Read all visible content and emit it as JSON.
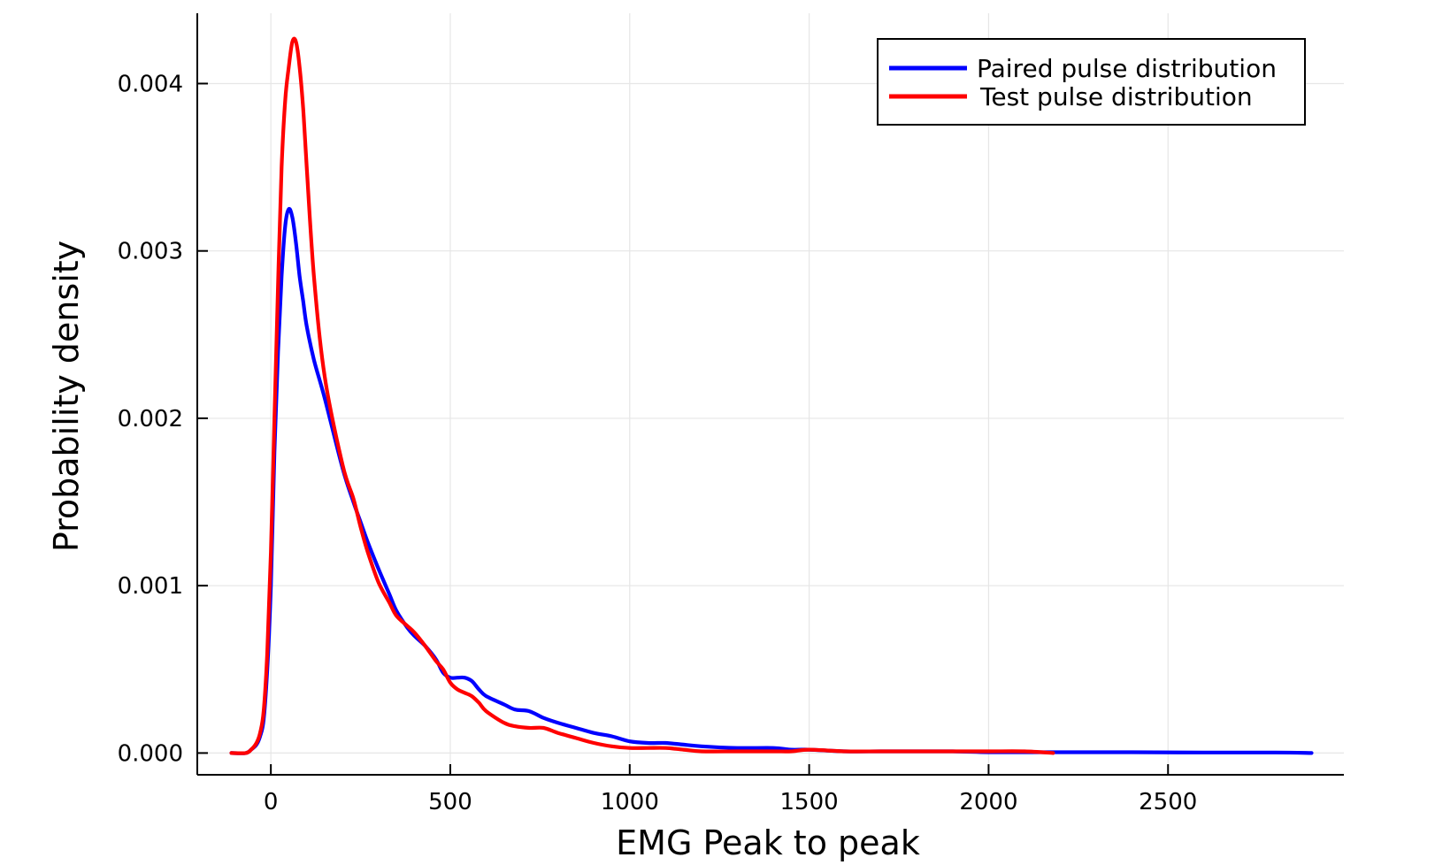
{
  "chart_data": {
    "type": "line",
    "title": "",
    "xlabel": "EMG Peak to peak",
    "ylabel": "Probability density",
    "xlim": [
      -205,
      2990
    ],
    "ylim": [
      -0.00013,
      0.00442
    ],
    "xticks": [
      0,
      500,
      1000,
      1500,
      2000,
      2500
    ],
    "xtick_labels": [
      "0",
      "500",
      "1000",
      "1500",
      "2000",
      "2500"
    ],
    "yticks": [
      0,
      0.001,
      0.002,
      0.003,
      0.004
    ],
    "ytick_labels": [
      "0.000",
      "0.001",
      "0.002",
      "0.003",
      "0.004"
    ],
    "grid": true,
    "legend": "top-right",
    "series": [
      {
        "name": "Paired pulse distribution",
        "color": "#0000ff",
        "x": [
          -110,
          -70,
          -55,
          -40,
          -30,
          -20,
          -10,
          0,
          10,
          20,
          30,
          40,
          50,
          60,
          70,
          80,
          90,
          100,
          120,
          150,
          200,
          230,
          250,
          270,
          300,
          330,
          350,
          380,
          400,
          430,
          460,
          480,
          500,
          520,
          540,
          560,
          580,
          600,
          650,
          680,
          720,
          760,
          800,
          850,
          900,
          950,
          1000,
          1050,
          1100,
          1150,
          1200,
          1300,
          1400,
          1450,
          1500,
          1600,
          1700,
          1800,
          1900,
          2000,
          2100,
          2200,
          2300,
          2400,
          2600,
          2800,
          2900
        ],
        "y": [
          0,
          0,
          2e-05,
          5e-05,
          0.0001,
          0.0002,
          0.0005,
          0.001,
          0.0018,
          0.0024,
          0.00285,
          0.00315,
          0.00325,
          0.0032,
          0.00305,
          0.00285,
          0.0027,
          0.00255,
          0.00235,
          0.00212,
          0.0017,
          0.0015,
          0.00138,
          0.00126,
          0.0011,
          0.00095,
          0.00085,
          0.00075,
          0.0007,
          0.00064,
          0.00056,
          0.00048,
          0.00045,
          0.00045,
          0.00045,
          0.00043,
          0.00038,
          0.00034,
          0.00029,
          0.00026,
          0.00025,
          0.00021,
          0.00018,
          0.00015,
          0.00012,
          0.0001,
          7e-05,
          6e-05,
          6e-05,
          5e-05,
          4e-05,
          3e-05,
          3e-05,
          2e-05,
          2e-05,
          1e-05,
          1e-05,
          1e-05,
          1e-05,
          5e-06,
          5e-06,
          5e-06,
          5e-06,
          5e-06,
          3e-06,
          3e-06,
          0
        ]
      },
      {
        "name": "Test pulse distribution",
        "color": "#ff0000",
        "x": [
          -110,
          -70,
          -55,
          -40,
          -30,
          -20,
          -10,
          0,
          10,
          20,
          30,
          40,
          50,
          60,
          70,
          80,
          90,
          100,
          120,
          150,
          200,
          230,
          250,
          270,
          300,
          330,
          350,
          380,
          400,
          430,
          460,
          480,
          500,
          520,
          540,
          560,
          580,
          600,
          650,
          680,
          720,
          760,
          800,
          850,
          900,
          950,
          1000,
          1050,
          1100,
          1150,
          1200,
          1300,
          1400,
          1450,
          1500,
          1600,
          1700,
          1800,
          1900,
          2000,
          2100,
          2180
        ],
        "y": [
          0,
          0,
          2e-05,
          6e-05,
          0.00012,
          0.00025,
          0.0006,
          0.0012,
          0.002,
          0.0028,
          0.0035,
          0.0039,
          0.0041,
          0.00425,
          0.00425,
          0.0041,
          0.00385,
          0.0035,
          0.00285,
          0.00225,
          0.00172,
          0.00152,
          0.00135,
          0.0012,
          0.00102,
          0.0009,
          0.00082,
          0.00076,
          0.00072,
          0.00064,
          0.00055,
          0.0005,
          0.00042,
          0.00038,
          0.00036,
          0.00034,
          0.0003,
          0.00025,
          0.00018,
          0.00016,
          0.00015,
          0.00015,
          0.00012,
          9e-05,
          6e-05,
          4e-05,
          3e-05,
          3e-05,
          3e-05,
          2e-05,
          1e-05,
          1e-05,
          1e-05,
          1e-05,
          2e-05,
          1e-05,
          1e-05,
          1e-05,
          1e-05,
          1e-05,
          1e-05,
          0
        ]
      }
    ]
  }
}
